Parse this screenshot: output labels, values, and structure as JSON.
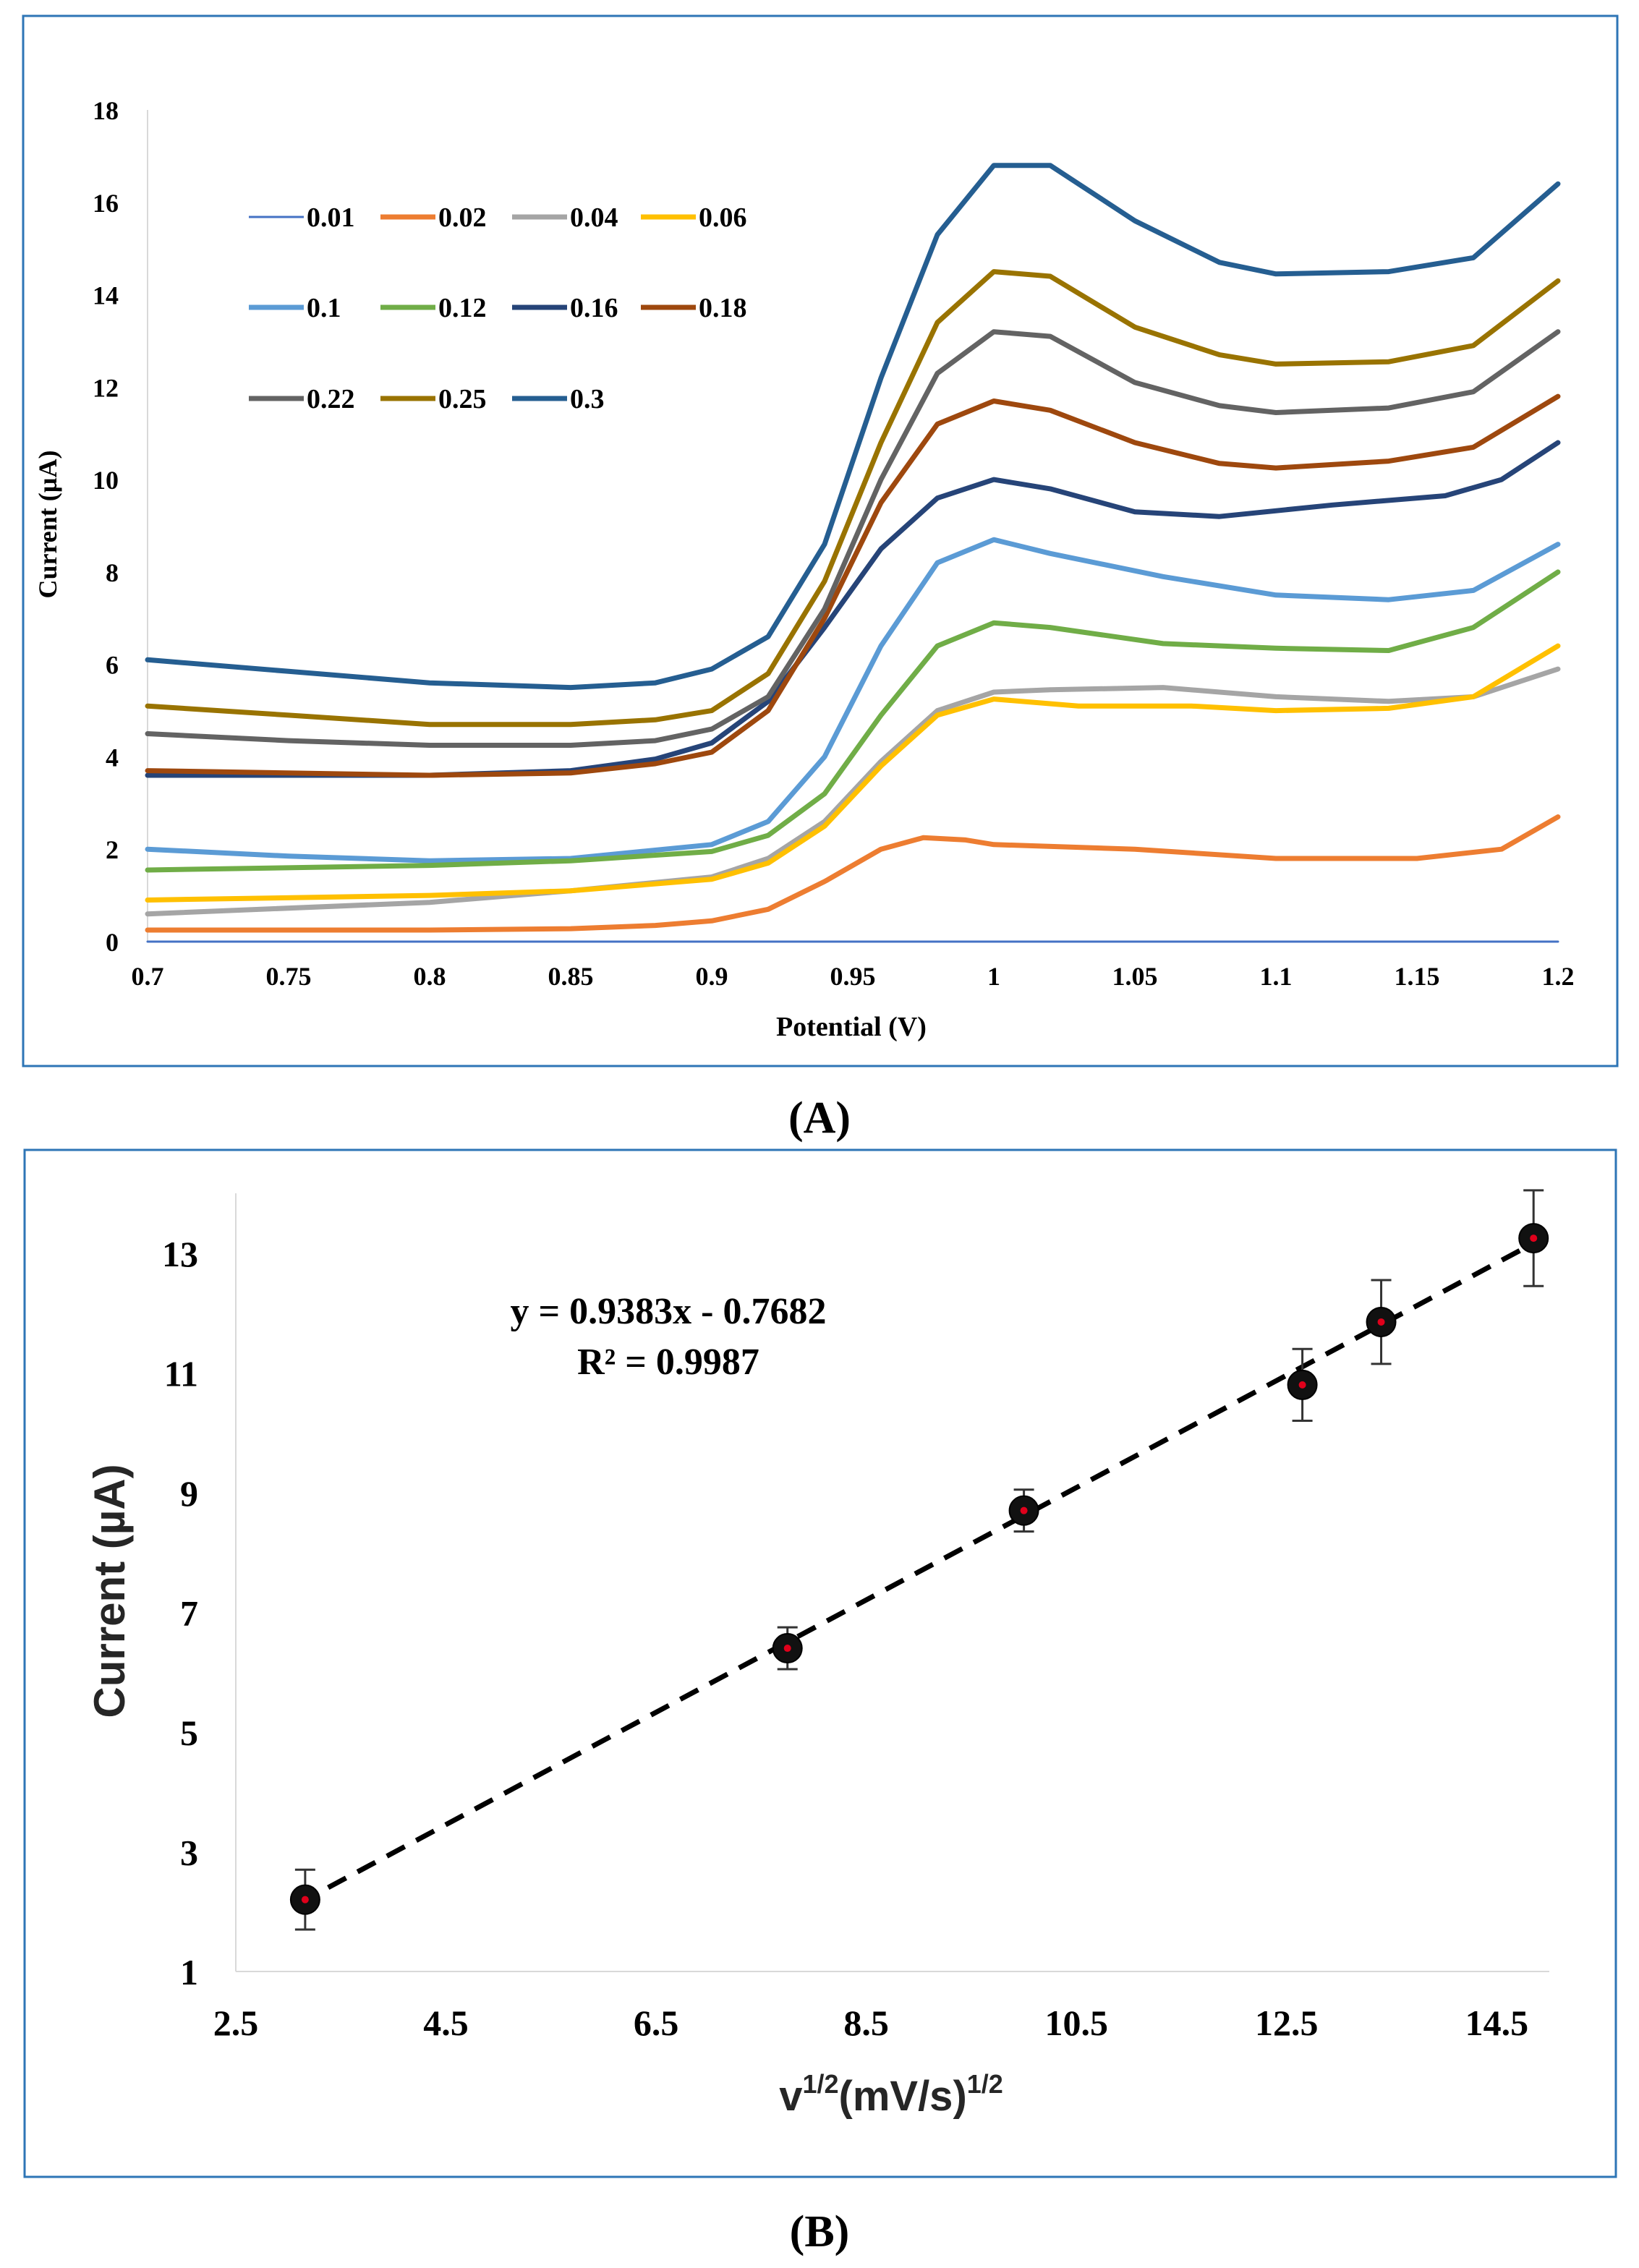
{
  "panel_a": {
    "label": "(A)",
    "chart_data": {
      "type": "line",
      "title": "",
      "xlabel": "Potential (V)",
      "ylabel": "Current  (µA)",
      "xlim": [
        0.7,
        1.2
      ],
      "ylim": [
        0,
        18
      ],
      "xticks": [
        "0.7",
        "0.75",
        "0.8",
        "0.85",
        "0.9",
        "0.95",
        "1",
        "1.05",
        "1.1",
        "1.15",
        "1.2"
      ],
      "yticks": [
        "0",
        "2",
        "4",
        "6",
        "8",
        "10",
        "12",
        "14",
        "16",
        "18"
      ],
      "legend_placement": "top-left",
      "grid": false,
      "series": [
        {
          "name": "0.01",
          "color": "#4472c4",
          "points": [
            [
              0.7,
              0
            ],
            [
              1.2,
              0
            ]
          ]
        },
        {
          "name": "0.02",
          "color": "#ed7d31",
          "points": [
            [
              0.7,
              0.25
            ],
            [
              0.8,
              0.25
            ],
            [
              0.85,
              0.28
            ],
            [
              0.88,
              0.35
            ],
            [
              0.9,
              0.45
            ],
            [
              0.92,
              0.7
            ],
            [
              0.94,
              1.3
            ],
            [
              0.96,
              2.0
            ],
            [
              0.975,
              2.25
            ],
            [
              0.99,
              2.2
            ],
            [
              1.0,
              2.1
            ],
            [
              1.05,
              2.0
            ],
            [
              1.1,
              1.8
            ],
            [
              1.15,
              1.8
            ],
            [
              1.18,
              2.0
            ],
            [
              1.2,
              2.7
            ]
          ]
        },
        {
          "name": "0.04",
          "color": "#a5a5a5",
          "points": [
            [
              0.7,
              0.6
            ],
            [
              0.8,
              0.85
            ],
            [
              0.85,
              1.1
            ],
            [
              0.9,
              1.4
            ],
            [
              0.92,
              1.8
            ],
            [
              0.94,
              2.6
            ],
            [
              0.96,
              3.9
            ],
            [
              0.98,
              5.0
            ],
            [
              1.0,
              5.4
            ],
            [
              1.02,
              5.45
            ],
            [
              1.06,
              5.5
            ],
            [
              1.1,
              5.3
            ],
            [
              1.14,
              5.2
            ],
            [
              1.17,
              5.3
            ],
            [
              1.2,
              5.9
            ]
          ]
        },
        {
          "name": "0.06",
          "color": "#ffc000",
          "points": [
            [
              0.7,
              0.9
            ],
            [
              0.8,
              1.0
            ],
            [
              0.85,
              1.1
            ],
            [
              0.9,
              1.35
            ],
            [
              0.92,
              1.7
            ],
            [
              0.94,
              2.5
            ],
            [
              0.96,
              3.8
            ],
            [
              0.98,
              4.9
            ],
            [
              1.0,
              5.25
            ],
            [
              1.03,
              5.1
            ],
            [
              1.07,
              5.1
            ],
            [
              1.1,
              5.0
            ],
            [
              1.14,
              5.05
            ],
            [
              1.17,
              5.3
            ],
            [
              1.2,
              6.4
            ]
          ]
        },
        {
          "name": "0.1",
          "color": "#5b9bd5",
          "points": [
            [
              0.7,
              2.0
            ],
            [
              0.75,
              1.85
            ],
            [
              0.8,
              1.75
            ],
            [
              0.85,
              1.8
            ],
            [
              0.9,
              2.1
            ],
            [
              0.92,
              2.6
            ],
            [
              0.94,
              4.0
            ],
            [
              0.96,
              6.4
            ],
            [
              0.98,
              8.2
            ],
            [
              1.0,
              8.7
            ],
            [
              1.02,
              8.4
            ],
            [
              1.06,
              7.9
            ],
            [
              1.1,
              7.5
            ],
            [
              1.14,
              7.4
            ],
            [
              1.17,
              7.6
            ],
            [
              1.2,
              8.6
            ]
          ]
        },
        {
          "name": "0.12",
          "color": "#70ad47",
          "points": [
            [
              0.7,
              1.55
            ],
            [
              0.8,
              1.65
            ],
            [
              0.85,
              1.75
            ],
            [
              0.9,
              1.95
            ],
            [
              0.92,
              2.3
            ],
            [
              0.94,
              3.2
            ],
            [
              0.96,
              4.9
            ],
            [
              0.98,
              6.4
            ],
            [
              1.0,
              6.9
            ],
            [
              1.02,
              6.8
            ],
            [
              1.06,
              6.45
            ],
            [
              1.1,
              6.35
            ],
            [
              1.14,
              6.3
            ],
            [
              1.17,
              6.8
            ],
            [
              1.2,
              8.0
            ]
          ]
        },
        {
          "name": "0.16",
          "color": "#264478",
          "points": [
            [
              0.7,
              3.6
            ],
            [
              0.8,
              3.6
            ],
            [
              0.85,
              3.7
            ],
            [
              0.88,
              3.95
            ],
            [
              0.9,
              4.3
            ],
            [
              0.92,
              5.2
            ],
            [
              0.94,
              6.8
            ],
            [
              0.96,
              8.5
            ],
            [
              0.98,
              9.6
            ],
            [
              1.0,
              10.0
            ],
            [
              1.02,
              9.8
            ],
            [
              1.05,
              9.3
            ],
            [
              1.08,
              9.2
            ],
            [
              1.12,
              9.45
            ],
            [
              1.16,
              9.65
            ],
            [
              1.18,
              10.0
            ],
            [
              1.2,
              10.8
            ]
          ]
        },
        {
          "name": "0.18",
          "color": "#9e480e",
          "points": [
            [
              0.7,
              3.7
            ],
            [
              0.8,
              3.6
            ],
            [
              0.85,
              3.65
            ],
            [
              0.88,
              3.85
            ],
            [
              0.9,
              4.1
            ],
            [
              0.92,
              5.0
            ],
            [
              0.94,
              7.0
            ],
            [
              0.96,
              9.5
            ],
            [
              0.98,
              11.2
            ],
            [
              1.0,
              11.7
            ],
            [
              1.02,
              11.5
            ],
            [
              1.05,
              10.8
            ],
            [
              1.08,
              10.35
            ],
            [
              1.1,
              10.25
            ],
            [
              1.14,
              10.4
            ],
            [
              1.17,
              10.7
            ],
            [
              1.2,
              11.8
            ]
          ]
        },
        {
          "name": "0.22",
          "color": "#636363",
          "points": [
            [
              0.7,
              4.5
            ],
            [
              0.75,
              4.35
            ],
            [
              0.8,
              4.25
            ],
            [
              0.85,
              4.25
            ],
            [
              0.88,
              4.35
            ],
            [
              0.9,
              4.6
            ],
            [
              0.92,
              5.3
            ],
            [
              0.94,
              7.2
            ],
            [
              0.96,
              10.0
            ],
            [
              0.98,
              12.3
            ],
            [
              1.0,
              13.2
            ],
            [
              1.02,
              13.1
            ],
            [
              1.05,
              12.1
            ],
            [
              1.08,
              11.6
            ],
            [
              1.1,
              11.45
            ],
            [
              1.14,
              11.55
            ],
            [
              1.17,
              11.9
            ],
            [
              1.2,
              13.2
            ]
          ]
        },
        {
          "name": "0.25",
          "color": "#997300",
          "points": [
            [
              0.7,
              5.1
            ],
            [
              0.75,
              4.9
            ],
            [
              0.8,
              4.7
            ],
            [
              0.85,
              4.7
            ],
            [
              0.88,
              4.8
            ],
            [
              0.9,
              5.0
            ],
            [
              0.92,
              5.8
            ],
            [
              0.94,
              7.8
            ],
            [
              0.96,
              10.8
            ],
            [
              0.98,
              13.4
            ],
            [
              1.0,
              14.5
            ],
            [
              1.02,
              14.4
            ],
            [
              1.05,
              13.3
            ],
            [
              1.08,
              12.7
            ],
            [
              1.1,
              12.5
            ],
            [
              1.14,
              12.55
            ],
            [
              1.17,
              12.9
            ],
            [
              1.2,
              14.3
            ]
          ]
        },
        {
          "name": "0.3",
          "color": "#255e91",
          "points": [
            [
              0.7,
              6.1
            ],
            [
              0.75,
              5.85
            ],
            [
              0.8,
              5.6
            ],
            [
              0.85,
              5.5
            ],
            [
              0.88,
              5.6
            ],
            [
              0.9,
              5.9
            ],
            [
              0.92,
              6.6
            ],
            [
              0.94,
              8.6
            ],
            [
              0.96,
              12.2
            ],
            [
              0.98,
              15.3
            ],
            [
              1.0,
              16.8
            ],
            [
              1.02,
              16.8
            ],
            [
              1.05,
              15.6
            ],
            [
              1.08,
              14.7
            ],
            [
              1.1,
              14.45
            ],
            [
              1.14,
              14.5
            ],
            [
              1.17,
              14.8
            ],
            [
              1.2,
              16.4
            ]
          ]
        }
      ]
    }
  },
  "panel_b": {
    "label": "(B)",
    "chart_data": {
      "type": "scatter",
      "title": "",
      "xlabel_base": "v",
      "xlabel_sup1": "1/2",
      "xlabel_mid": "(mV/s)",
      "xlabel_sup2": "1/2",
      "ylabel": "Current (µA)",
      "xlim": [
        2.5,
        15.0
      ],
      "ylim": [
        1,
        14
      ],
      "xticks": [
        "2.5",
        "4.5",
        "6.5",
        "8.5",
        "10.5",
        "12.5",
        "14.5"
      ],
      "yticks": [
        "1",
        "3",
        "5",
        "7",
        "9",
        "11",
        "13"
      ],
      "equation": "y = 0.9383x - 0.7682",
      "r_squared": "R² = 0.9987",
      "trendline": {
        "slope": 0.9383,
        "intercept": -0.7682,
        "x_start": 3.1,
        "x_end": 14.8
      },
      "points": [
        {
          "x": 3.16,
          "y": 2.2,
          "err": 0.5
        },
        {
          "x": 7.75,
          "y": 6.4,
          "err": 0.35
        },
        {
          "x": 10.0,
          "y": 8.7,
          "err": 0.35
        },
        {
          "x": 12.65,
          "y": 10.8,
          "err": 0.6
        },
        {
          "x": 13.4,
          "y": 11.85,
          "err": 0.7
        },
        {
          "x": 14.85,
          "y": 13.25,
          "err": 0.8
        }
      ]
    }
  }
}
